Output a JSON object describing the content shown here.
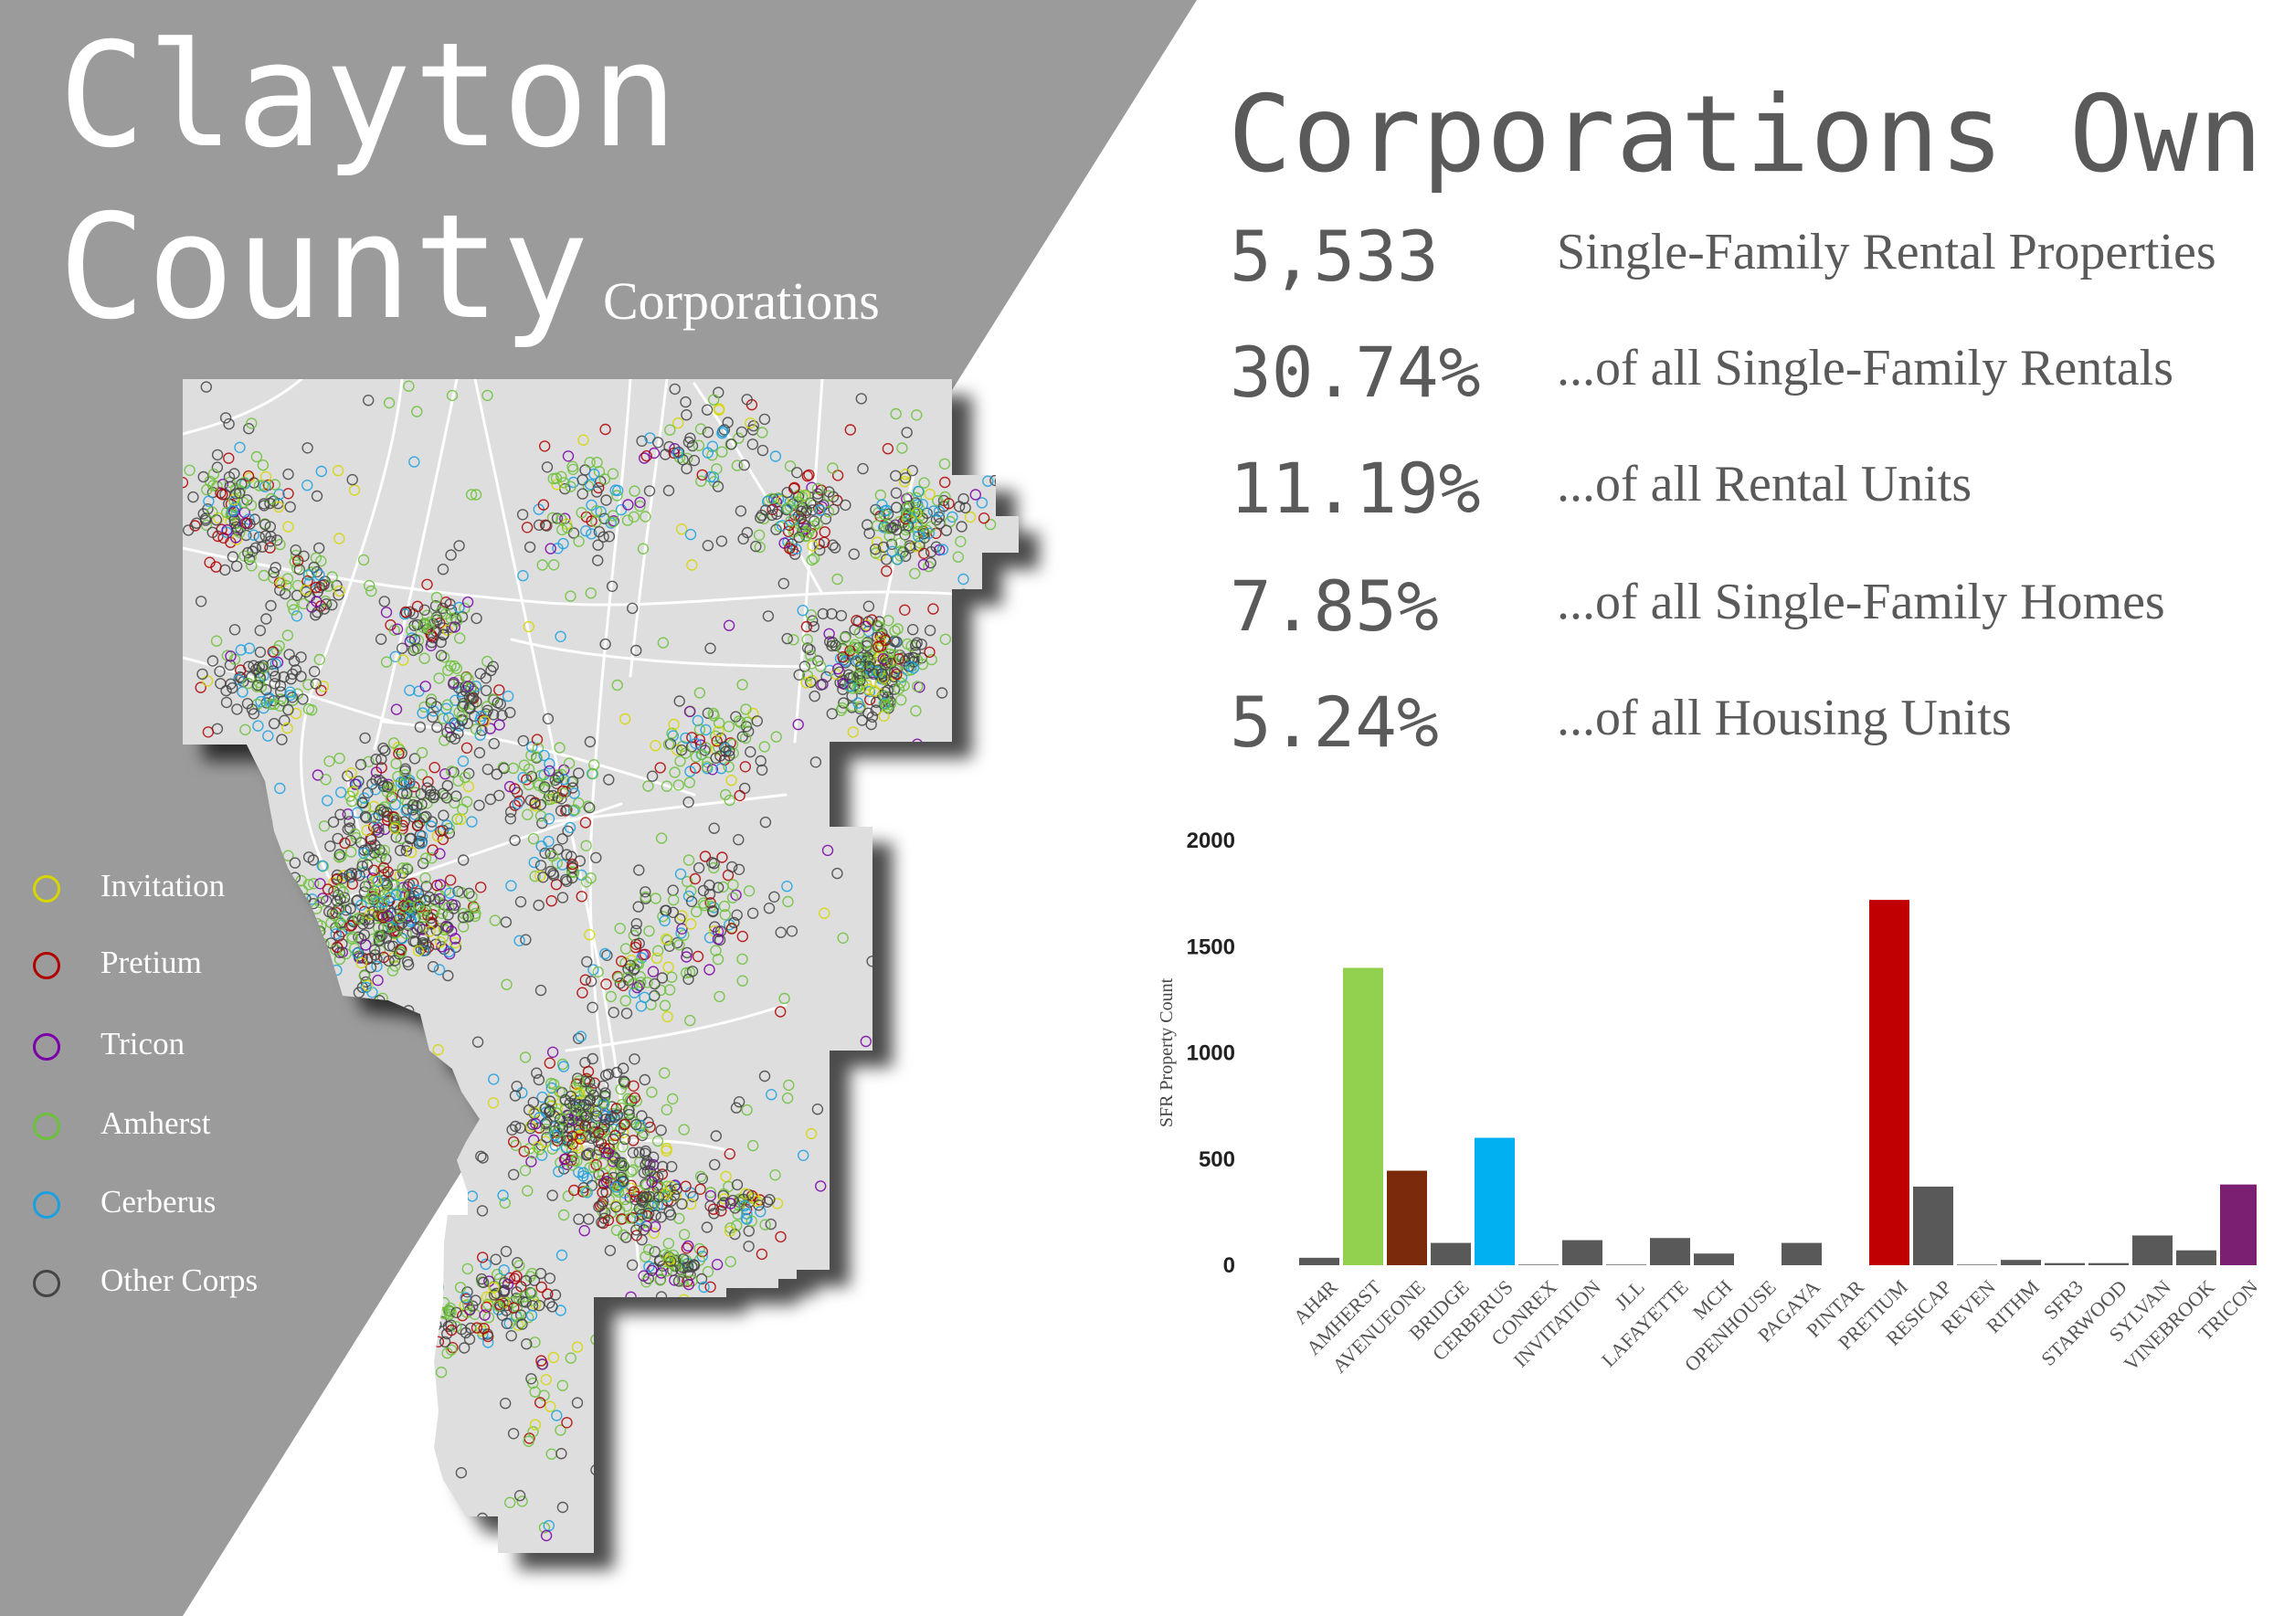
{
  "title": {
    "line1": "Clayton",
    "line2": "County",
    "subtitle": "Corporations"
  },
  "colors": {
    "panel": "#9b9b9b",
    "map_fill": "#dedede",
    "road": "#ffffff",
    "stat_text": "#5a5a5a"
  },
  "legend": [
    {
      "label": "Invitation",
      "color": "#d6d600"
    },
    {
      "label": "Pretium",
      "color": "#b00000"
    },
    {
      "label": "Tricon",
      "color": "#7a00a8"
    },
    {
      "label": "Amherst",
      "color": "#6cc13a"
    },
    {
      "label": "Cerberus",
      "color": "#1aa0e0"
    },
    {
      "label": "Other Corps",
      "color": "#444444"
    }
  ],
  "stats": {
    "heading": "Corporations Own:",
    "rows": [
      {
        "value": "5,533",
        "desc": "Single-Family Rental Properties"
      },
      {
        "value": "30.74%",
        "desc": "...of all Single-Family Rentals"
      },
      {
        "value": "11.19%",
        "desc": "...of all Rental Units"
      },
      {
        "value": "7.85%",
        "desc": "...of all Single-Family Homes"
      },
      {
        "value": "5.24%",
        "desc": "...of all Housing Units"
      }
    ]
  },
  "chart_data": {
    "type": "bar",
    "title": "",
    "xlabel": "",
    "ylabel": "SFR Property Count",
    "ylim": [
      0,
      2000
    ],
    "yticks": [
      0,
      500,
      1000,
      1500,
      2000
    ],
    "grid": false,
    "categories": [
      "AH4R",
      "AMHERST",
      "AVENUEONE",
      "BRIDGE",
      "CERBERUS",
      "CONREX",
      "INVITATION",
      "JLL",
      "LAFAYETTE",
      "MCH",
      "OPENHOUSE",
      "PAGAYA",
      "PINTAR",
      "PRETIUM",
      "RESICAP",
      "REVEN",
      "RITHM",
      "SFR3",
      "STARWOOD",
      "SYLVAN",
      "VINEBROOK",
      "TRICON"
    ],
    "values": [
      35,
      1400,
      445,
      105,
      600,
      3,
      118,
      3,
      128,
      55,
      0,
      105,
      0,
      1720,
      370,
      3,
      25,
      10,
      10,
      140,
      70,
      380
    ],
    "colors": [
      "#595959",
      "#92d050",
      "#7b2a0c",
      "#595959",
      "#00b0f0",
      "#595959",
      "#595959",
      "#595959",
      "#595959",
      "#595959",
      "#595959",
      "#595959",
      "#595959",
      "#c00000",
      "#595959",
      "#595959",
      "#595959",
      "#595959",
      "#595959",
      "#595959",
      "#595959",
      "#7b1f72"
    ]
  }
}
